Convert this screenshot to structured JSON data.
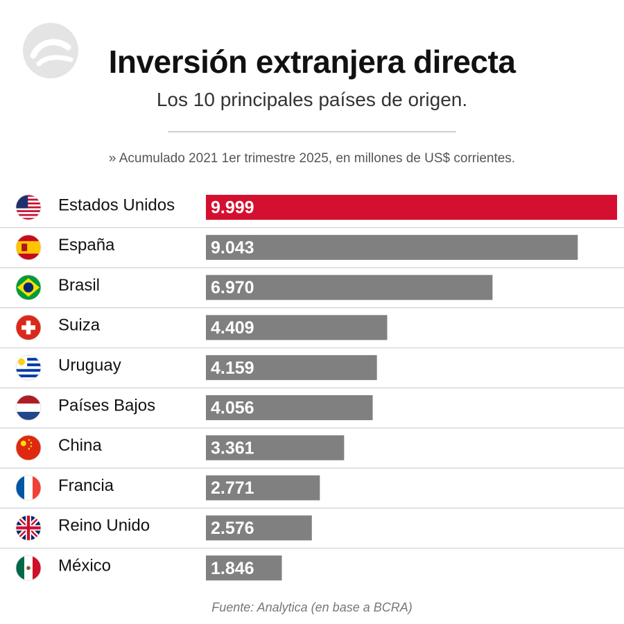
{
  "header": {
    "logo_icon": "publisher-logo-icon",
    "title": "Inversión extranjera directa",
    "subtitle": "Los 10 principales países de origen.",
    "note": "» Acumulado 2021 1er trimestre 2025, en millones de US$ corrientes."
  },
  "footer": {
    "source": "Fuente: Analytica (en base a BCRA)"
  },
  "colors": {
    "highlight": "#d50f2f",
    "bar": "#808080"
  },
  "chart_data": {
    "type": "bar",
    "orientation": "horizontal",
    "title": "Inversión extranjera directa",
    "subtitle": "Los 10 principales países de origen.",
    "unit": "millones de US$ corrientes",
    "categories": [
      "Estados Unidos",
      "España",
      "Brasil",
      "Suiza",
      "Uruguay",
      "Países Bajos",
      "China",
      "Francia",
      "Reino Unido",
      "México"
    ],
    "values": [
      9999,
      9043,
      6970,
      4409,
      4159,
      4056,
      3361,
      2771,
      2576,
      1846
    ],
    "value_labels": [
      "9.999",
      "9.043",
      "6.970",
      "4.409",
      "4.159",
      "4.056",
      "3.361",
      "2.771",
      "2.576",
      "1.846"
    ],
    "flag_icons": [
      "usa-flag-icon",
      "spain-flag-icon",
      "brazil-flag-icon",
      "switzerland-flag-icon",
      "uruguay-flag-icon",
      "netherlands-flag-icon",
      "china-flag-icon",
      "france-flag-icon",
      "uk-flag-icon",
      "mexico-flag-icon"
    ],
    "highlighted_category": "Estados Unidos",
    "xlim": [
      0,
      9999
    ]
  }
}
